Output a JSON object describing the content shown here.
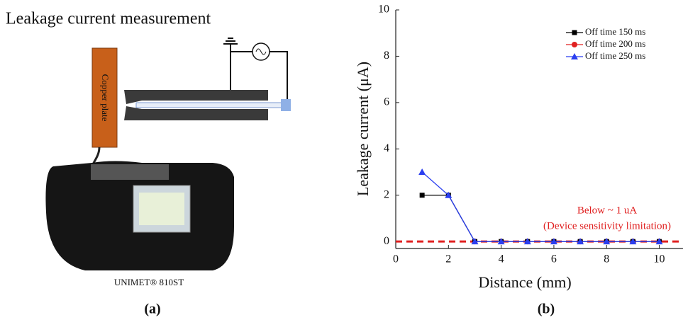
{
  "panel_a": {
    "title": "Leakage current measurement",
    "plate_label": "Copper plate",
    "device_label": "UNIMET® 810ST",
    "caption": "(a)"
  },
  "panel_b": {
    "caption": "(b)"
  },
  "chart_data": {
    "type": "line",
    "x_label": "Distance (mm)",
    "y_label": "Leakage current (μA)",
    "x": [
      1,
      2,
      3,
      4,
      5,
      6,
      7,
      8,
      9,
      10
    ],
    "series": [
      {
        "name": "Off time 200 ms",
        "color": "#e02020",
        "marker": "circle",
        "values": [
          null,
          null,
          0,
          0,
          0,
          0,
          0,
          0,
          0,
          0
        ]
      },
      {
        "name": "Off time 150 ms",
        "color": "#000000",
        "marker": "square",
        "values": [
          2,
          2,
          0,
          0,
          0,
          0,
          0,
          0,
          0,
          0
        ]
      },
      {
        "name": "Off time 250 ms",
        "color": "#2b3ff0",
        "marker": "triangle",
        "values": [
          3,
          2,
          0,
          0,
          0,
          0,
          0,
          0,
          0,
          0
        ]
      }
    ],
    "legend_order": [
      1,
      0,
      2
    ],
    "legend": "top-right",
    "xlim": [
      0,
      10.9
    ],
    "xticks": [
      0,
      2,
      4,
      6,
      8,
      10
    ],
    "ylim": [
      -0.3,
      10
    ],
    "yticks": [
      0,
      2,
      4,
      6,
      8,
      10
    ],
    "reference_line": {
      "value": 0,
      "color": "#e02020"
    },
    "annotations": [
      "Below ~ 1 uA",
      "(Device  sensitivity limitation)"
    ]
  }
}
